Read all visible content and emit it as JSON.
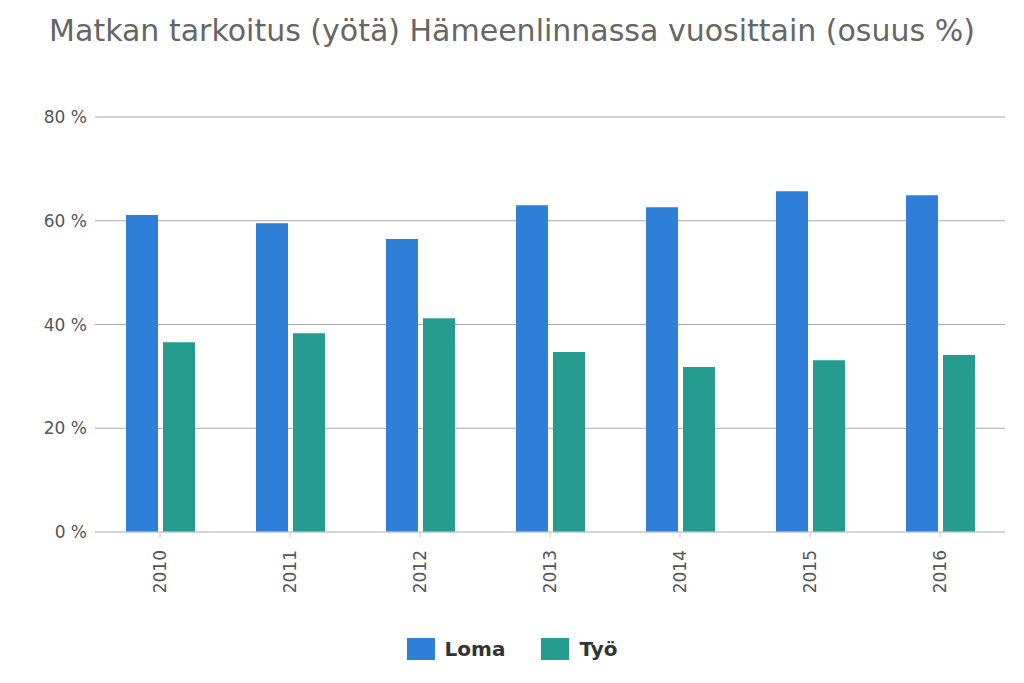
{
  "chart_data": {
    "type": "bar",
    "title": "Matkan tarkoitus (yötä) Hämeenlinnassa vuosittain (osuus %)",
    "categories": [
      "2010",
      "2011",
      "2012",
      "2013",
      "2014",
      "2015",
      "2016"
    ],
    "series": [
      {
        "name": "Loma",
        "color": "#2f7ed8",
        "values": [
          61.1,
          59.5,
          56.5,
          63,
          62.6,
          65.7,
          64.9
        ]
      },
      {
        "name": "Työ",
        "color": "#269b8f",
        "values": [
          36.6,
          38.3,
          41.2,
          34.7,
          31.8,
          33.1,
          34.1
        ]
      }
    ],
    "ylim": [
      0,
      80
    ],
    "yticks": [
      {
        "value": 0,
        "label": "0 %"
      },
      {
        "value": 20,
        "label": "20 %"
      },
      {
        "value": 40,
        "label": "40 %"
      },
      {
        "value": 60,
        "label": "60 %"
      },
      {
        "value": 80,
        "label": "80 %"
      }
    ],
    "grid": true,
    "legend": "bottom"
  }
}
